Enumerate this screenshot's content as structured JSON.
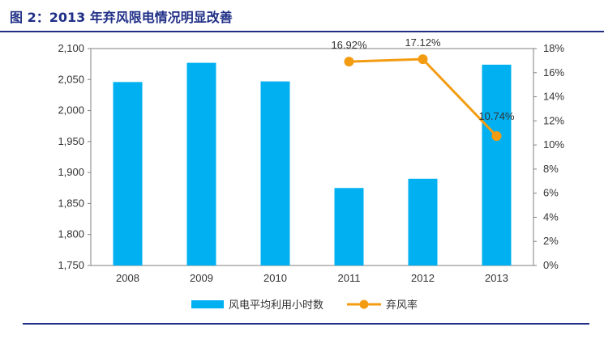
{
  "page": {
    "title": "图 2：2013 年弃风限电情况明显改善"
  },
  "colors": {
    "bar": "#00b0f0",
    "line": "#f39c12",
    "title": "#1f2f86",
    "axis": "#808080"
  },
  "chart_data": {
    "type": "bar+line",
    "title": "图 2：2013 年弃风限电情况明显改善",
    "categories": [
      "2008",
      "2009",
      "2010",
      "2011",
      "2012",
      "2013"
    ],
    "series": [
      {
        "name": "风电平均利用小时数",
        "type": "bar",
        "axis": "left",
        "values": [
          2046,
          2077,
          2047,
          1875,
          1890,
          2074
        ]
      },
      {
        "name": "弃风率",
        "type": "line",
        "axis": "right",
        "x": [
          "2011",
          "2012",
          "2013"
        ],
        "values": [
          16.92,
          17.12,
          10.74
        ],
        "labels": [
          "16.92%",
          "17.12%",
          "10.74%"
        ]
      }
    ],
    "y_left": {
      "min": 1750,
      "max": 2100,
      "ticks": [
        "1,750",
        "1,800",
        "1,850",
        "1,900",
        "1,950",
        "2,000",
        "2,050",
        "2,100"
      ]
    },
    "y_right": {
      "min": 0,
      "max": 18,
      "ticks": [
        "0%",
        "2%",
        "4%",
        "6%",
        "8%",
        "10%",
        "12%",
        "14%",
        "16%",
        "18%"
      ]
    },
    "grid": false,
    "legend_position": "bottom"
  }
}
